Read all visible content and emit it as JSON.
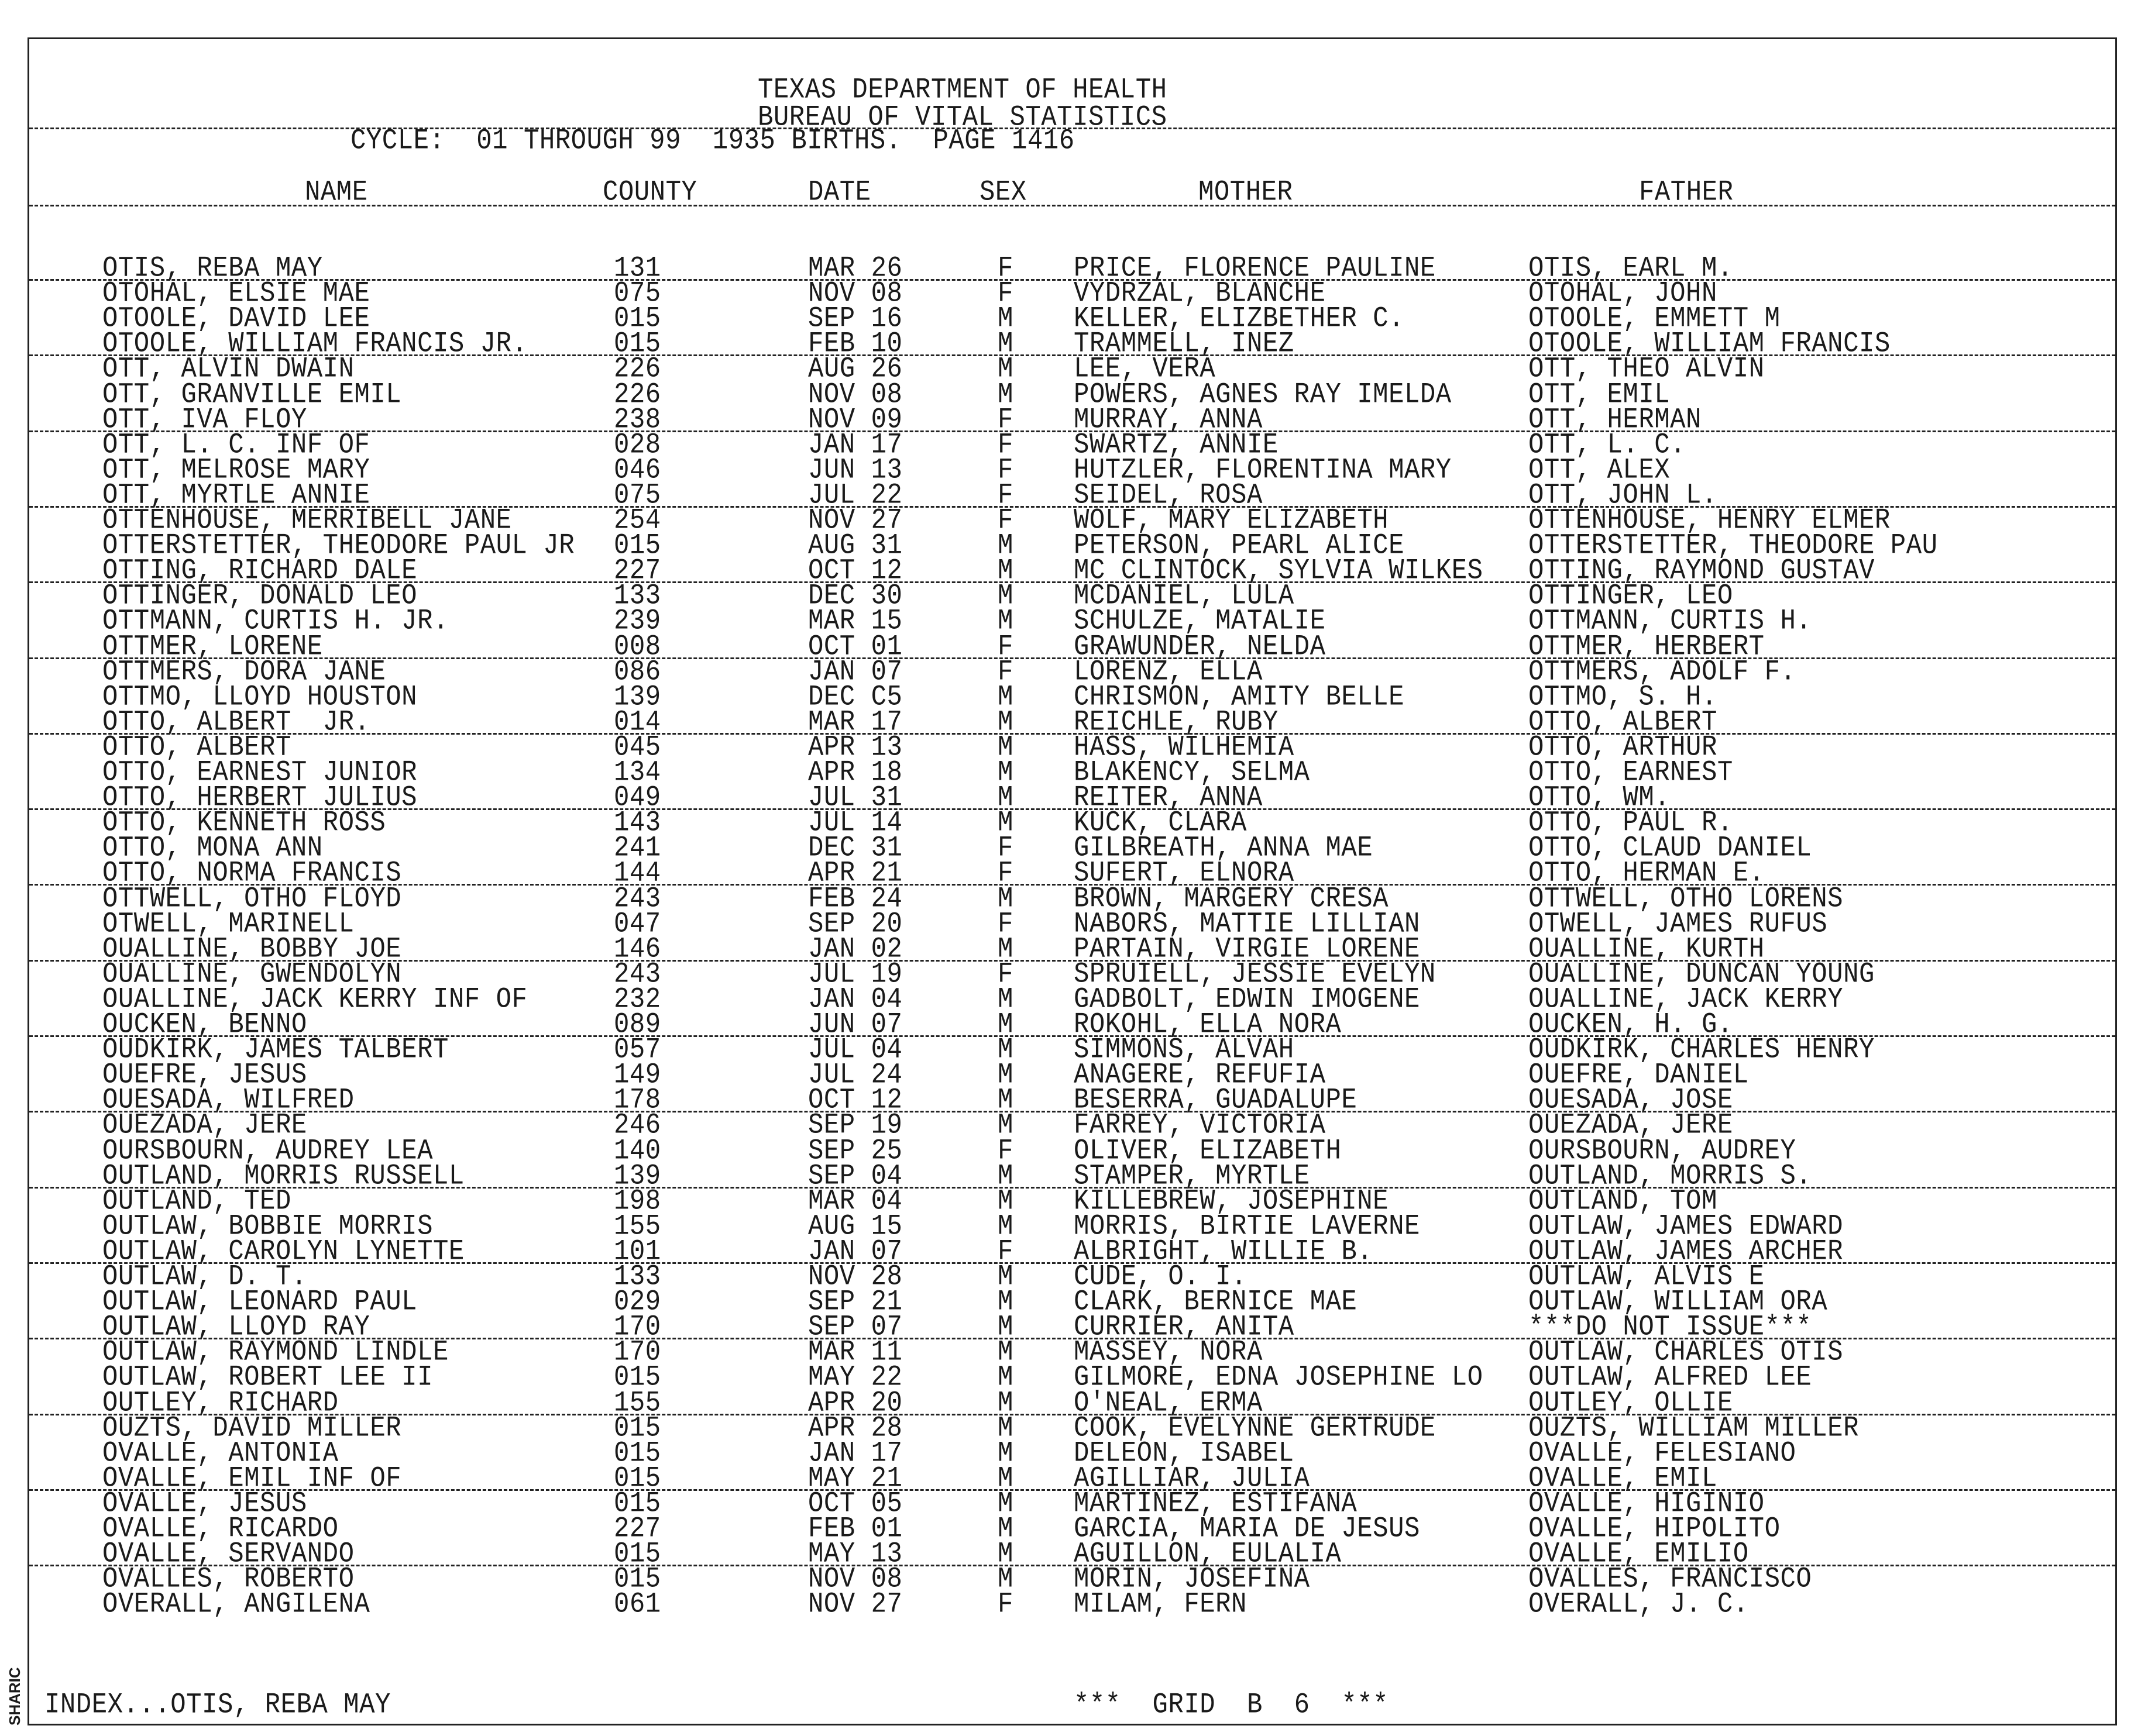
{
  "header": {
    "line1": "TEXAS DEPARTMENT OF HEALTH",
    "line2": "BUREAU OF VITAL STATISTICS",
    "cycle": "CYCLE:  01 THROUGH 99  1935 BIRTHS.  PAGE 1416"
  },
  "columns": {
    "name": "NAME",
    "county": "COUNTY",
    "date": "DATE",
    "sex": "SEX",
    "mother": "MOTHER",
    "father": "FATHER"
  },
  "rows": [
    [
      "OTIS, REBA MAY",
      "131",
      "MAR 26",
      "F",
      "PRICE, FLORENCE PAULINE",
      "OTIS, EARL M."
    ],
    [
      "OTOHAL, ELSIE MAE",
      "075",
      "NOV 08",
      "F",
      "VYDRZAL, BLANCHE",
      "OTOHAL, JOHN"
    ],
    [
      "OTOOLE, DAVID LEE",
      "015",
      "SEP 16",
      "M",
      "KELLER, ELIZBETHER C.",
      "OTOOLE, EMMETT M"
    ],
    [
      "OTOOLE, WILLIAM FRANCIS JR.",
      "015",
      "FEB 10",
      "M",
      "TRAMMELL, INEZ",
      "OTOOLE, WILLIAM FRANCIS"
    ],
    [
      "OTT, ALVIN DWAIN",
      "226",
      "AUG 26",
      "M",
      "LEE, VERA",
      "OTT, THEO ALVIN"
    ],
    [
      "OTT, GRANVILLE EMIL",
      "226",
      "NOV 08",
      "M",
      "POWERS, AGNES RAY IMELDA",
      "OTT, EMIL"
    ],
    [
      "OTT, IVA FLOY",
      "238",
      "NOV 09",
      "F",
      "MURRAY, ANNA",
      "OTT, HERMAN"
    ],
    [
      "OTT, L. C. INF OF",
      "028",
      "JAN 17",
      "F",
      "SWARTZ, ANNIE",
      "OTT, L. C."
    ],
    [
      "OTT, MELROSE MARY",
      "046",
      "JUN 13",
      "F",
      "HUTZLER, FLORENTINA MARY",
      "OTT, ALEX"
    ],
    [
      "OTT, MYRTLE ANNIE",
      "075",
      "JUL 22",
      "F",
      "SEIDEL, ROSA",
      "OTT, JOHN L."
    ],
    [
      "OTTENHOUSE, MERRIBELL JANE",
      "254",
      "NOV 27",
      "F",
      "WOLF, MARY ELIZABETH",
      "OTTENHOUSE, HENRY ELMER"
    ],
    [
      "OTTERSTETTER, THEODORE PAUL JR",
      "015",
      "AUG 31",
      "M",
      "PETERSON, PEARL ALICE",
      "OTTERSTETTER, THEODORE PAU"
    ],
    [
      "OTTING, RICHARD DALE",
      "227",
      "OCT 12",
      "M",
      "MC CLINTOCK, SYLVIA WILKES",
      "OTTING, RAYMOND GUSTAV"
    ],
    [
      "OTTINGER, DONALD LEO",
      "133",
      "DEC 30",
      "M",
      "MCDANIEL, LULA",
      "OTTINGER, LEO"
    ],
    [
      "OTTMANN, CURTIS H. JR.",
      "239",
      "MAR 15",
      "M",
      "SCHULZE, MATALIE",
      "OTTMANN, CURTIS H."
    ],
    [
      "OTTMER, LORENE",
      "008",
      "OCT 01",
      "F",
      "GRAWUNDER, NELDA",
      "OTTMER, HERBERT"
    ],
    [
      "OTTMERS, DORA JANE",
      "086",
      "JAN 07",
      "F",
      "LORENZ, ELLA",
      "OTTMERS, ADOLF F."
    ],
    [
      "OTTMO, LLOYD HOUSTON",
      "139",
      "DEC C5",
      "M",
      "CHRISMON, AMITY BELLE",
      "OTTMO, S. H."
    ],
    [
      "OTTO, ALBERT  JR.",
      "014",
      "MAR 17",
      "M",
      "REICHLE, RUBY",
      "OTTO, ALBERT"
    ],
    [
      "OTTO, ALBERT",
      "045",
      "APR 13",
      "M",
      "HASS, WILHEMIA",
      "OTTO, ARTHUR"
    ],
    [
      "OTTO, EARNEST JUNIOR",
      "134",
      "APR 18",
      "M",
      "BLAKENCY, SELMA",
      "OTTO, EARNEST"
    ],
    [
      "OTTO, HERBERT JULIUS",
      "049",
      "JUL 31",
      "M",
      "REITER, ANNA",
      "OTTO, WM."
    ],
    [
      "OTTO, KENNETH ROSS",
      "143",
      "JUL 14",
      "M",
      "KUCK, CLARA",
      "OTTO, PAUL R."
    ],
    [
      "OTTO, MONA ANN",
      "241",
      "DEC 31",
      "F",
      "GILBREATH, ANNA MAE",
      "OTTO, CLAUD DANIEL"
    ],
    [
      "OTTO, NORMA FRANCIS",
      "144",
      "APR 21",
      "F",
      "SUFERT, ELNORA",
      "OTTO, HERMAN E."
    ],
    [
      "OTTWELL, OTHO FLOYD",
      "243",
      "FEB 24",
      "M",
      "BROWN, MARGERY CRESA",
      "OTTWELL, OTHO LORENS"
    ],
    [
      "OTWELL, MARINELL",
      "047",
      "SEP 20",
      "F",
      "NABORS, MATTIE LILLIAN",
      "OTWELL, JAMES RUFUS"
    ],
    [
      "OUALLINE, BOBBY JOE",
      "146",
      "JAN 02",
      "M",
      "PARTAIN, VIRGIE LORENE",
      "OUALLINE, KURTH"
    ],
    [
      "OUALLINE, GWENDOLYN",
      "243",
      "JUL 19",
      "F",
      "SPRUIELL, JESSIE EVELYN",
      "OUALLINE, DUNCAN YOUNG"
    ],
    [
      "OUALLINE, JACK KERRY INF OF",
      "232",
      "JAN 04",
      "M",
      "GADBOLT, EDWIN IMOGENE",
      "OUALLINE, JACK KERRY"
    ],
    [
      "OUCKEN, BENNO",
      "089",
      "JUN 07",
      "M",
      "ROKOHL, ELLA NORA",
      "OUCKEN, H. G."
    ],
    [
      "OUDKIRK, JAMES TALBERT",
      "057",
      "JUL 04",
      "M",
      "SIMMONS, ALVAH",
      "OUDKIRK, CHARLES HENRY"
    ],
    [
      "OUEFRE, JESUS",
      "149",
      "JUL 24",
      "M",
      "ANAGERE, REFUFIA",
      "OUEFRE, DANIEL"
    ],
    [
      "OUESADA, WILFRED",
      "178",
      "OCT 12",
      "M",
      "BESERRA, GUADALUPE",
      "OUESADA, JOSE"
    ],
    [
      "OUEZADA, JERE",
      "246",
      "SEP 19",
      "M",
      "FARREY, VICTORIA",
      "OUEZADA, JERE"
    ],
    [
      "OURSBOURN, AUDREY LEA",
      "140",
      "SEP 25",
      "F",
      "OLIVER, ELIZABETH",
      "OURSBOURN, AUDREY"
    ],
    [
      "OUTLAND, MORRIS RUSSELL",
      "139",
      "SEP 04",
      "M",
      "STAMPER, MYRTLE",
      "OUTLAND, MORRIS S."
    ],
    [
      "OUTLAND, TED",
      "198",
      "MAR 04",
      "M",
      "KILLEBREW, JOSEPHINE",
      "OUTLAND, TOM"
    ],
    [
      "OUTLAW, BOBBIE MORRIS",
      "155",
      "AUG 15",
      "M",
      "MORRIS, BIRTIE LAVERNE",
      "OUTLAW, JAMES EDWARD"
    ],
    [
      "OUTLAW, CAROLYN LYNETTE",
      "101",
      "JAN 07",
      "F",
      "ALBRIGHT, WILLIE B.",
      "OUTLAW, JAMES ARCHER"
    ],
    [
      "OUTLAW, D. T.",
      "133",
      "NOV 28",
      "M",
      "CUDE, O. I.",
      "OUTLAW, ALVIS E"
    ],
    [
      "OUTLAW, LEONARD PAUL",
      "029",
      "SEP 21",
      "M",
      "CLARK, BERNICE MAE",
      "OUTLAW, WILLIAM ORA"
    ],
    [
      "OUTLAW, LLOYD RAY",
      "170",
      "SEP 07",
      "M",
      "CURRIER, ANITA",
      "***DO NOT ISSUE***"
    ],
    [
      "OUTLAW, RAYMOND LINDLE",
      "170",
      "MAR 11",
      "M",
      "MASSEY, NORA",
      "OUTLAW, CHARLES OTIS"
    ],
    [
      "OUTLAW, ROBERT LEE II",
      "015",
      "MAY 22",
      "M",
      "GILMORE, EDNA JOSEPHINE LO",
      "OUTLAW, ALFRED LEE"
    ],
    [
      "OUTLEY, RICHARD",
      "155",
      "APR 20",
      "M",
      "O'NEAL, ERMA",
      "OUTLEY, OLLIE"
    ],
    [
      "OUZTS, DAVID MILLER",
      "015",
      "APR 28",
      "M",
      "COOK, EVELYNNE GERTRUDE",
      "OUZTS, WILLIAM MILLER"
    ],
    [
      "OVALLE, ANTONIA",
      "015",
      "JAN 17",
      "M",
      "DELEON, ISABEL",
      "OVALLE, FELESIANO"
    ],
    [
      "OVALLE, EMIL INF OF",
      "015",
      "MAY 21",
      "M",
      "AGILLIAR, JULIA",
      "OVALLE, EMIL"
    ],
    [
      "OVALLE, JESUS",
      "015",
      "OCT 05",
      "M",
      "MARTINEZ, ESTIFANA",
      "OVALLE, HIGINIO"
    ],
    [
      "OVALLE, RICARDO",
      "227",
      "FEB 01",
      "M",
      "GARCIA, MARIA DE JESUS",
      "OVALLE, HIPOLITO"
    ],
    [
      "OVALLE, SERVANDO",
      "015",
      "MAY 13",
      "M",
      "AGUILLON, EULALIA",
      "OVALLE, EMILIO"
    ],
    [
      "OVALLES, ROBERTO",
      "015",
      "NOV 08",
      "M",
      "MORIN, JOSEFINA",
      "OVALLES, FRANCISCO"
    ],
    [
      "OVERALL, ANGILENA",
      "061",
      "NOV 27",
      "F",
      "MILAM, FERN",
      "OVERALL, J. C."
    ]
  ],
  "footer": {
    "index": "INDEX...OTIS, REBA MAY",
    "grid": "***  GRID  B  6  ***"
  },
  "side_label": "SHARIC"
}
